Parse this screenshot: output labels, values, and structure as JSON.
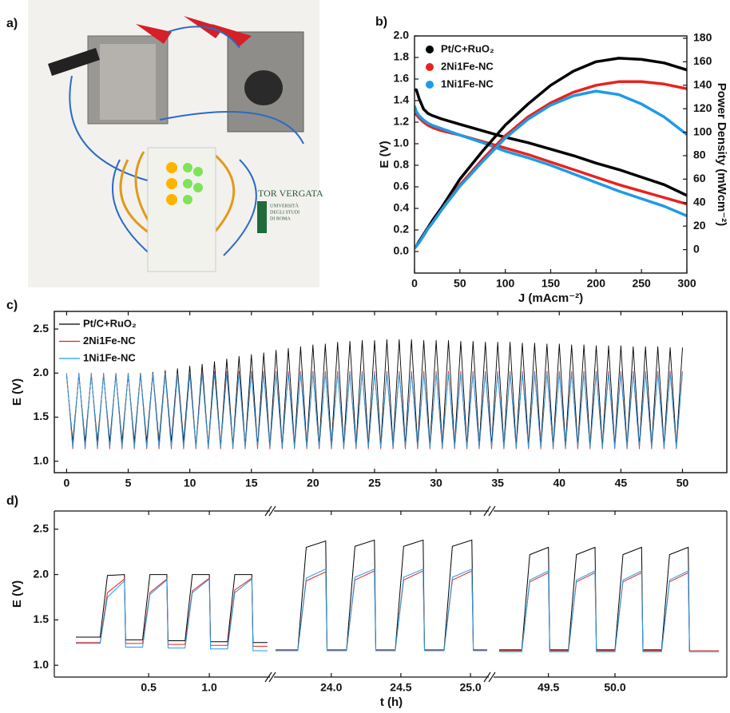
{
  "photo": {
    "panel_label": "a)",
    "logo_title": "TOR VERGATA",
    "logo_lines": [
      "UNIVERSITÀ",
      "DEGLI STUDI",
      "DI ROMA"
    ]
  },
  "chart_data": [
    {
      "type": "line",
      "panel_label": "b)",
      "xlabel": "J (mAcm⁻²)",
      "ylabel": "E (V)",
      "y2label": "Power Density (mWcm⁻²)",
      "xlim": [
        0,
        300
      ],
      "xticks": [
        0,
        50,
        100,
        150,
        200,
        250,
        300
      ],
      "ylim": [
        -0.2,
        2.0
      ],
      "yticks": [
        {
          "value": 0,
          "label": "0.0"
        },
        0.2,
        0.4,
        0.6,
        0.8,
        {
          "value": 1,
          "label": "1.0"
        },
        1.2,
        1.4,
        1.6,
        1.8,
        {
          "value": 2,
          "label": "2.0"
        }
      ],
      "y2lim": [
        -20,
        182
      ],
      "y2ticks": [
        0,
        20,
        40,
        60,
        80,
        100,
        120,
        140,
        160,
        180
      ],
      "x": [
        0,
        2,
        5,
        10,
        15,
        20,
        30,
        50,
        75,
        100,
        125,
        150,
        175,
        200,
        225,
        250,
        275,
        300
      ],
      "series": [
        {
          "name": "Pt/C+RuO₂",
          "color": "#000000",
          "values": [
            1.5,
            1.5,
            1.42,
            1.32,
            1.28,
            1.26,
            1.23,
            1.18,
            1.12,
            1.06,
            1.01,
            0.95,
            0.89,
            0.82,
            0.76,
            0.69,
            0.62,
            0.52
          ]
        },
        {
          "name": "2Ni1Fe-NC",
          "color": "#e8221d",
          "values": [
            1.28,
            1.27,
            1.24,
            1.2,
            1.17,
            1.15,
            1.12,
            1.08,
            1.02,
            0.96,
            0.9,
            0.83,
            0.76,
            0.69,
            0.62,
            0.56,
            0.5,
            0.44
          ]
        },
        {
          "name": "1Ni1Fe-NC",
          "color": "#1e9be6",
          "values": [
            1.35,
            1.3,
            1.26,
            1.22,
            1.19,
            1.17,
            1.14,
            1.08,
            1.01,
            0.93,
            0.87,
            0.8,
            0.72,
            0.64,
            0.56,
            0.49,
            0.42,
            0.33
          ]
        },
        {
          "axis": "y2",
          "color": "#000000",
          "values": [
            2,
            3,
            7,
            13,
            19,
            25,
            36,
            60,
            84,
            106,
            124,
            140,
            152,
            160,
            163,
            162,
            159,
            153
          ]
        },
        {
          "axis": "y2",
          "color": "#e8221d",
          "values": [
            1,
            3,
            6,
            12,
            18,
            23,
            34,
            55,
            77,
            97,
            113,
            125,
            134,
            140,
            143,
            143,
            141,
            137
          ]
        },
        {
          "axis": "y2",
          "color": "#1e9be6",
          "values": [
            1,
            3,
            6,
            12,
            18,
            23,
            34,
            54,
            75,
            95,
            111,
            123,
            131,
            135,
            132,
            124,
            113,
            98
          ]
        }
      ]
    },
    {
      "type": "line",
      "panel_label": "c)",
      "ylabel": "E (V)",
      "xlim": [
        -1,
        53.6
      ],
      "xticks": [
        0,
        5,
        10,
        15,
        20,
        25,
        30,
        35,
        40,
        45,
        50
      ],
      "ylim": [
        0.87,
        2.7
      ],
      "yticks": [
        {
          "value": 1,
          "label": "1.0"
        },
        1.5,
        {
          "value": 2,
          "label": "2.0"
        },
        2.5
      ],
      "x": [
        0,
        0.5,
        1,
        1.5,
        2,
        2.5,
        3,
        3.5,
        4,
        4.5,
        5,
        5.5,
        6,
        6.5,
        7,
        7.5,
        8,
        8.5,
        9,
        9.5,
        10,
        10.5,
        11,
        11.5,
        12,
        12.5,
        13,
        13.5,
        14,
        14.5,
        15,
        15.5,
        16,
        16.5,
        17,
        17.5,
        18,
        18.5,
        19,
        19.5,
        20,
        20.5,
        21,
        21.5,
        22,
        22.5,
        23,
        23.5,
        24,
        24.5,
        25,
        25.5,
        26,
        26.5,
        27,
        27.5,
        28,
        28.5,
        29,
        29.5,
        30,
        30.5,
        31,
        31.5,
        32,
        32.5,
        33,
        33.5,
        34,
        34.5,
        35,
        35.5,
        36,
        36.5,
        37,
        37.5,
        38,
        38.5,
        39,
        39.5,
        40,
        40.5,
        41,
        41.5,
        42,
        42.5,
        43,
        43.5,
        44,
        44.5,
        45,
        45.5,
        46,
        46.5,
        47,
        47.5,
        48,
        48.5,
        49,
        49.5,
        50
      ],
      "series": [
        {
          "name": "Pt/C+RuO₂",
          "color": "#000000",
          "values": [
            1.97,
            1.22,
            1.98,
            1.22,
            1.98,
            1.22,
            1.98,
            1.22,
            1.99,
            1.22,
            1.99,
            1.22,
            2.0,
            1.22,
            2.01,
            1.22,
            2.03,
            1.22,
            2.05,
            1.22,
            2.08,
            1.17,
            2.1,
            1.17,
            2.13,
            1.17,
            2.16,
            1.17,
            2.19,
            1.17,
            2.21,
            1.17,
            2.23,
            1.17,
            2.26,
            1.17,
            2.28,
            1.17,
            2.3,
            1.17,
            2.32,
            1.17,
            2.33,
            1.17,
            2.35,
            1.17,
            2.36,
            1.17,
            2.37,
            1.17,
            2.37,
            1.17,
            2.38,
            1.17,
            2.38,
            1.17,
            2.38,
            1.17,
            2.37,
            1.17,
            2.37,
            1.17,
            2.37,
            1.17,
            2.36,
            1.17,
            2.36,
            1.17,
            2.35,
            1.17,
            2.35,
            1.17,
            2.35,
            1.17,
            2.34,
            1.17,
            2.34,
            1.17,
            2.33,
            1.17,
            2.33,
            1.17,
            2.32,
            1.17,
            2.32,
            1.17,
            2.31,
            1.17,
            2.31,
            1.17,
            2.31,
            1.17,
            2.3,
            1.17,
            2.3,
            1.17,
            2.3,
            1.17,
            2.29,
            1.17,
            2.29
          ]
        },
        {
          "name": "2Ni1Fe-NC",
          "color": "#e8221d",
          "values": [
            2.0,
            1.14,
            2.0,
            1.14,
            2.0,
            1.14,
            2.0,
            1.14,
            2.0,
            1.14,
            2.0,
            1.14,
            2.0,
            1.14,
            2.0,
            1.14,
            2.0,
            1.14,
            2.0,
            1.14,
            2.0,
            1.14,
            2.02,
            1.14,
            2.02,
            1.14,
            2.02,
            1.14,
            2.02,
            1.14,
            2.02,
            1.14,
            2.02,
            1.14,
            2.02,
            1.14,
            2.02,
            1.14,
            2.02,
            1.14,
            2.02,
            1.14,
            2.02,
            1.14,
            2.02,
            1.14,
            2.02,
            1.14,
            2.02,
            1.14,
            2.02,
            1.14,
            2.02,
            1.14,
            2.02,
            1.14,
            2.02,
            1.14,
            2.02,
            1.14,
            2.02,
            1.14,
            2.02,
            1.14,
            2.02,
            1.14,
            2.02,
            1.14,
            2.02,
            1.14,
            2.02,
            1.14,
            2.02,
            1.14,
            2.02,
            1.14,
            2.02,
            1.14,
            2.02,
            1.14,
            2.02,
            1.14,
            2.02,
            1.14,
            2.02,
            1.14,
            2.02,
            1.14,
            2.02,
            1.14,
            2.02,
            1.14,
            2.02,
            1.14,
            2.02,
            1.14,
            2.02,
            1.14,
            2.02,
            1.14,
            2.02
          ]
        },
        {
          "name": "1Ni1Fe-NC",
          "color": "#1e9be6",
          "values": [
            1.99,
            1.16,
            1.99,
            1.16,
            1.99,
            1.16,
            1.99,
            1.16,
            1.99,
            1.16,
            1.99,
            1.16,
            1.99,
            1.16,
            1.99,
            1.16,
            1.99,
            1.16,
            1.99,
            1.16,
            2.0,
            1.16,
            2.0,
            1.16,
            2.0,
            1.16,
            2.0,
            1.16,
            2.0,
            1.16,
            2.0,
            1.16,
            2.0,
            1.16,
            2.0,
            1.16,
            2.0,
            1.16,
            2.0,
            1.16,
            2.0,
            1.16,
            2.0,
            1.16,
            2.0,
            1.16,
            2.0,
            1.16,
            2.0,
            1.16,
            2.0,
            1.16,
            2.0,
            1.16,
            2.0,
            1.16,
            2.0,
            1.16,
            2.0,
            1.16,
            2.0,
            1.16,
            2.0,
            1.16,
            2.0,
            1.16,
            2.0,
            1.16,
            2.0,
            1.16,
            2.0,
            1.16,
            2.0,
            1.16,
            2.0,
            1.16,
            2.0,
            1.16,
            2.0,
            1.16,
            2.0,
            1.16,
            2.0,
            1.16,
            2.0,
            1.16,
            2.0,
            1.16,
            2.0,
            1.16,
            2.0,
            1.16,
            2.0,
            1.16,
            2.0,
            1.16,
            2.0,
            1.16,
            2.0,
            1.16,
            2.0
          ]
        }
      ]
    },
    {
      "type": "broken-line",
      "panel_label": "d)",
      "xlabel": "t (h)",
      "ylabel": "E (V)",
      "ylim": [
        0.87,
        2.7
      ],
      "yticks": [
        {
          "value": 1,
          "label": "1.0"
        },
        1.5,
        {
          "value": 2,
          "label": "2.0"
        },
        2.5
      ],
      "segments": [
        {
          "xlim": [
            -0.1,
            1.48
          ],
          "xticks": [
            0.5,
            {
              "value": 1,
              "label": "1.0"
            }
          ],
          "x": [
            -0.1,
            0.1,
            0.16,
            0.3,
            0.31,
            0.45,
            0.51,
            0.65,
            0.66,
            0.8,
            0.86,
            1.0,
            1.01,
            1.15,
            1.21,
            1.35,
            1.36,
            1.48
          ],
          "series": [
            {
              "color": "#000000",
              "values": [
                1.31,
                1.31,
                1.99,
                2.0,
                1.28,
                1.28,
                2.0,
                2.0,
                1.27,
                1.27,
                2.0,
                2.0,
                1.26,
                1.26,
                2.0,
                2.0,
                1.25,
                1.25
              ]
            },
            {
              "color": "#e8221d",
              "values": [
                1.25,
                1.25,
                1.8,
                1.95,
                1.24,
                1.24,
                1.8,
                1.95,
                1.23,
                1.23,
                1.82,
                1.96,
                1.22,
                1.22,
                1.83,
                1.96,
                1.21,
                1.21
              ]
            },
            {
              "color": "#1e9be6",
              "values": [
                1.24,
                1.24,
                1.75,
                1.93,
                1.2,
                1.2,
                1.78,
                1.94,
                1.19,
                1.19,
                1.8,
                1.95,
                1.18,
                1.18,
                1.8,
                1.95,
                1.16,
                1.16
              ]
            }
          ]
        },
        {
          "xlim": [
            23.6,
            25.12
          ],
          "xticks": [
            {
              "value": 24,
              "label": "24.0"
            },
            24.5,
            {
              "value": 25,
              "label": "25.0"
            }
          ],
          "x": [
            23.6,
            23.76,
            23.82,
            23.96,
            23.97,
            24.11,
            24.17,
            24.31,
            24.32,
            24.46,
            24.52,
            24.66,
            24.67,
            24.81,
            24.87,
            25.01,
            25.02,
            25.12
          ],
          "series": [
            {
              "color": "#000000",
              "values": [
                1.17,
                1.17,
                2.3,
                2.37,
                1.17,
                1.17,
                2.31,
                2.38,
                1.17,
                1.17,
                2.31,
                2.38,
                1.17,
                1.17,
                2.31,
                2.38,
                1.17,
                1.17
              ]
            },
            {
              "color": "#e8221d",
              "values": [
                1.17,
                1.17,
                1.93,
                2.03,
                1.17,
                1.17,
                1.94,
                2.04,
                1.17,
                1.17,
                1.94,
                2.04,
                1.17,
                1.17,
                1.94,
                2.04,
                1.17,
                1.17
              ]
            },
            {
              "color": "#1e9be6",
              "values": [
                1.16,
                1.16,
                1.96,
                2.06,
                1.16,
                1.16,
                1.97,
                2.06,
                1.16,
                1.16,
                1.97,
                2.06,
                1.16,
                1.16,
                1.97,
                2.06,
                1.16,
                1.16
              ]
            }
          ]
        },
        {
          "xlim": [
            49.13,
            50.78
          ],
          "xticks": [
            49.5,
            {
              "value": 50,
              "label": "50.0"
            }
          ],
          "x": [
            49.13,
            49.3,
            49.36,
            49.5,
            49.51,
            49.65,
            49.71,
            49.85,
            49.86,
            50.0,
            50.06,
            50.2,
            50.21,
            50.35,
            50.41,
            50.55,
            50.56,
            50.78
          ],
          "series": [
            {
              "color": "#000000",
              "values": [
                1.17,
                1.17,
                2.22,
                2.3,
                1.17,
                1.17,
                2.22,
                2.3,
                1.17,
                1.17,
                2.22,
                2.3,
                1.17,
                1.17,
                2.22,
                2.3,
                1.16,
                1.16
              ]
            },
            {
              "color": "#e8221d",
              "values": [
                1.16,
                1.16,
                1.92,
                2.02,
                1.16,
                1.16,
                1.92,
                2.02,
                1.16,
                1.16,
                1.92,
                2.02,
                1.16,
                1.16,
                1.92,
                2.02,
                1.16,
                1.16
              ]
            },
            {
              "color": "#1e9be6",
              "values": [
                1.15,
                1.15,
                1.94,
                2.04,
                1.15,
                1.15,
                1.94,
                2.04,
                1.15,
                1.15,
                1.94,
                2.04,
                1.15,
                1.15,
                1.94,
                2.04,
                1.15,
                1.15
              ]
            }
          ]
        }
      ]
    }
  ]
}
